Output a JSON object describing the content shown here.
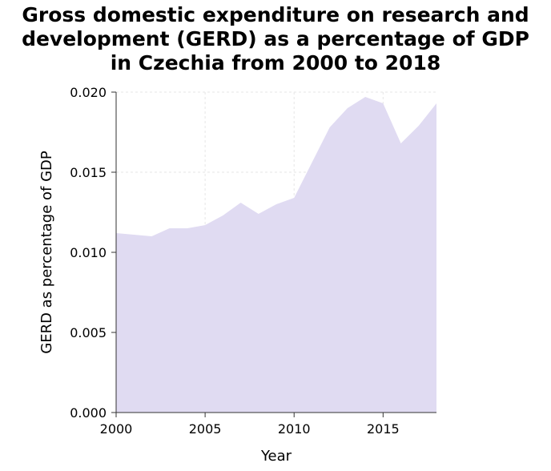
{
  "chart_data": {
    "type": "area",
    "title": "Gross domestic expenditure on research and\ndevelopment (GERD) as a percentage of GDP\nin Czechia from 2000 to 2018",
    "xlabel": "Year",
    "ylabel": "GERD as percentage of GDP",
    "xlim": [
      2000,
      2018
    ],
    "ylim": [
      0,
      0.02
    ],
    "x_ticks": [
      2000,
      2005,
      2010,
      2015
    ],
    "x_tick_labels": [
      "2000",
      "2005",
      "2010",
      "2015"
    ],
    "y_ticks": [
      0,
      0.005,
      0.01,
      0.015,
      0.02
    ],
    "y_tick_labels": [
      "0.000",
      "0.005",
      "0.010",
      "0.015",
      "0.020"
    ],
    "grid": true,
    "fill_color": "#e0dbf2",
    "series": [
      {
        "x": [
          2000,
          2001,
          2002,
          2003,
          2004,
          2005,
          2006,
          2007,
          2008,
          2009,
          2010,
          2011,
          2012,
          2013,
          2014,
          2015,
          2016,
          2017,
          2018
        ],
        "values": [
          0.0112,
          0.0111,
          0.011,
          0.0115,
          0.0115,
          0.0117,
          0.0123,
          0.0131,
          0.0124,
          0.013,
          0.0134,
          0.0156,
          0.0178,
          0.019,
          0.0197,
          0.0193,
          0.0168,
          0.0179,
          0.0193
        ]
      }
    ]
  }
}
